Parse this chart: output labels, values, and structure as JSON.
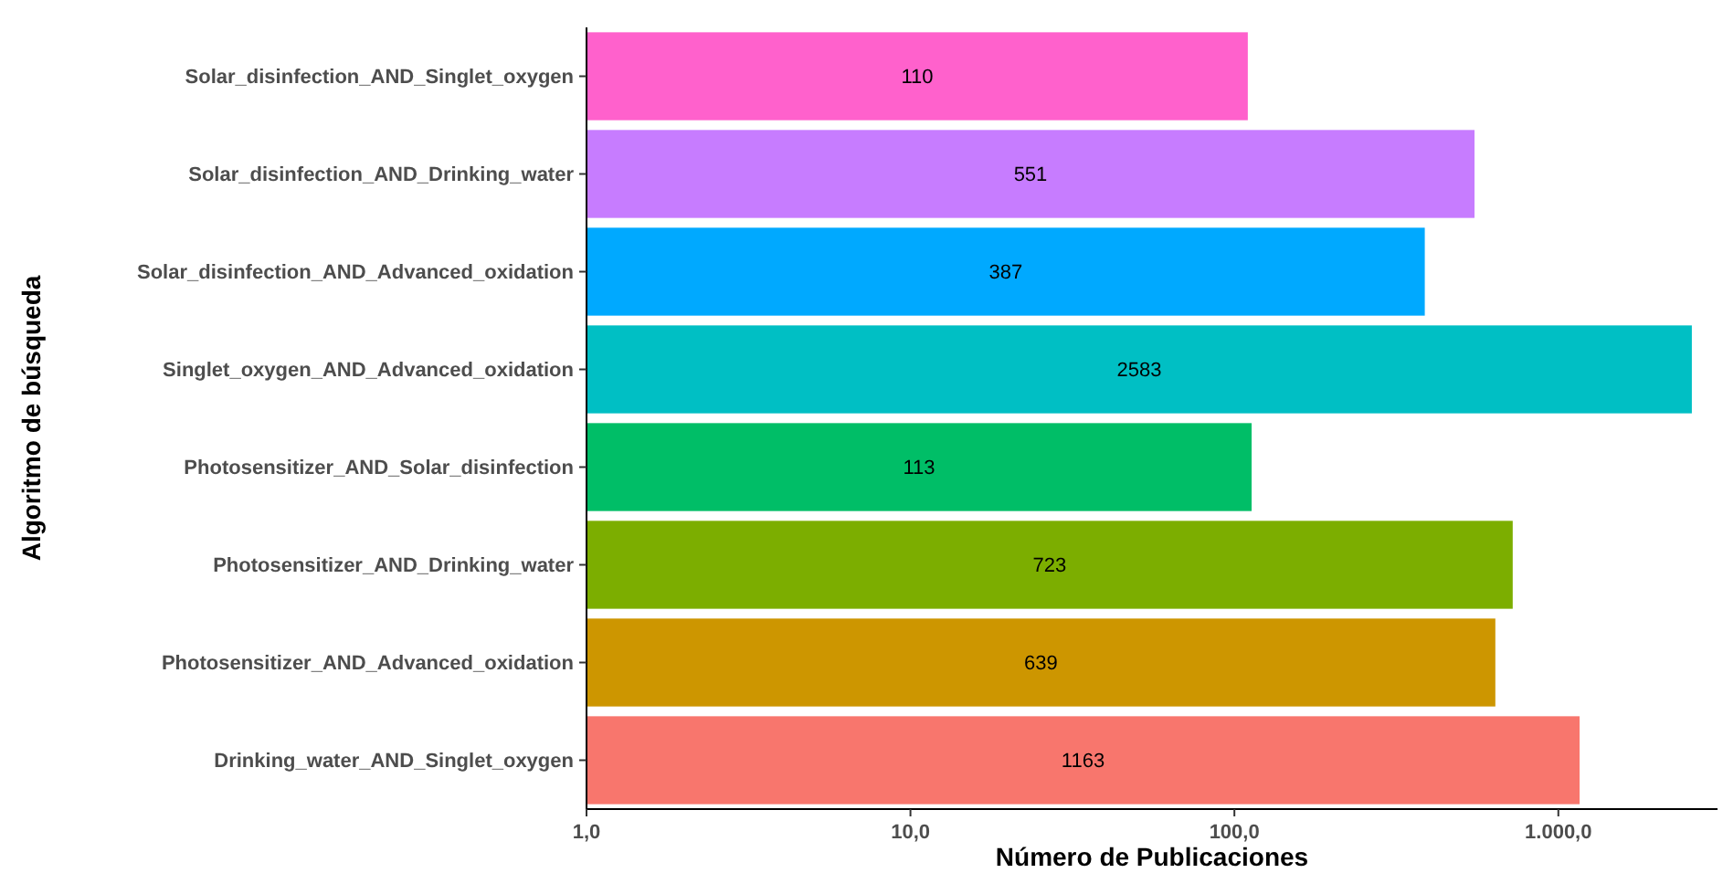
{
  "chart_data": {
    "type": "bar",
    "orientation": "horizontal",
    "log": "x",
    "xlabel": "Número de Publicaciones",
    "ylabel": "Algoritmo de búsqueda",
    "categories": [
      "Solar_disinfection_AND_Singlet_oxygen",
      "Solar_disinfection_AND_Drinking_water",
      "Solar_disinfection_AND_Advanced_oxidation",
      "Singlet_oxygen_AND_Advanced_oxidation",
      "Photosensitizer_AND_Solar_disinfection",
      "Photosensitizer_AND_Drinking_water",
      "Photosensitizer_AND_Advanced_oxidation",
      "Drinking_water_AND_Singlet_oxygen"
    ],
    "values": [
      110,
      551,
      387,
      2583,
      113,
      723,
      639,
      1163
    ],
    "colors": [
      "#ff61cc",
      "#c77cff",
      "#00a9ff",
      "#00bfc4",
      "#00be67",
      "#7cae00",
      "#cd9600",
      "#f8766d"
    ],
    "xlim": [
      1,
      3100
    ],
    "xticks": [
      {
        "value": 1,
        "label": "1,0"
      },
      {
        "value": 10,
        "label": "10,0"
      },
      {
        "value": 100,
        "label": "100,0"
      },
      {
        "value": 1000,
        "label": "1.000,0"
      }
    ],
    "data_labels": true,
    "grid": false
  }
}
